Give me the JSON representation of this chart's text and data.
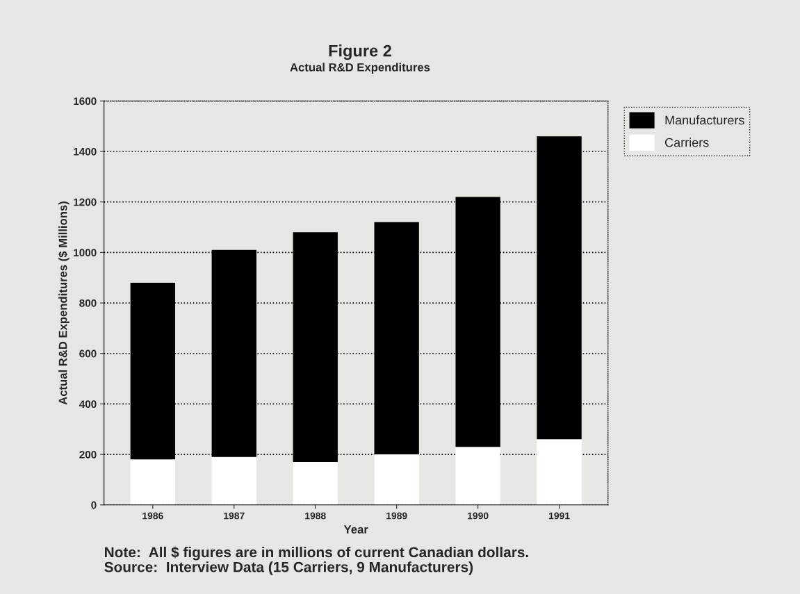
{
  "chart_data": {
    "type": "bar",
    "title": "Figure 2",
    "subtitle": "Actual R&D Expenditures",
    "xlabel": "Year",
    "ylabel": "Actual R&D Expenditures ($ Millions)",
    "categories": [
      "1986",
      "1987",
      "1988",
      "1989",
      "1990",
      "1991"
    ],
    "stacked": true,
    "series": [
      {
        "name": "Carriers",
        "color": "#ffffff",
        "values": [
          180,
          190,
          170,
          200,
          230,
          260
        ]
      },
      {
        "name": "Manufacturers",
        "color": "#000000",
        "values": [
          700,
          820,
          910,
          920,
          990,
          1200
        ]
      }
    ],
    "ylim": [
      0,
      1600
    ],
    "yticks": [
      0,
      200,
      400,
      600,
      800,
      1000,
      1200,
      1400,
      1600
    ],
    "grid": "y",
    "legend": "top right",
    "annotations": [
      "Note:  All $ figures are in millions of current Canadian dollars.",
      "Source:  Interview Data (15 Carriers, 9 Manufacturers)"
    ]
  }
}
